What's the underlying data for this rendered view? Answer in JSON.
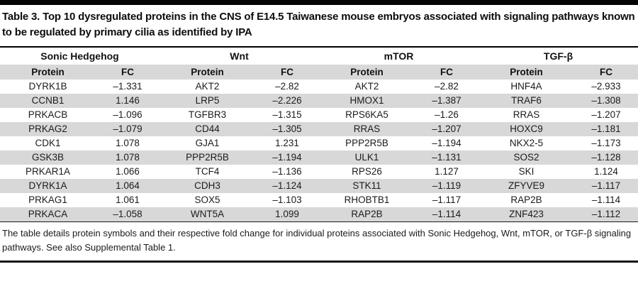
{
  "page": {
    "title": "Table 3. Top 10 dysregulated proteins in the CNS of E14.5 Taiwanese mouse embryos associated with signaling pathways known to be regulated by primary cilia as identified by IPA",
    "footnote": "The table details protein symbols and their respective fold change for individual proteins associated with Sonic Hedgehog, Wnt, mTOR, or TGF-β signaling pathways. See also Supplemental Table 1."
  },
  "table": {
    "col_headers": {
      "protein": "Protein",
      "fc": "FC"
    },
    "pathways": [
      {
        "name": "Sonic Hedgehog",
        "rows": [
          {
            "protein": "DYRK1B",
            "fc": "–1.331"
          },
          {
            "protein": "CCNB1",
            "fc": "1.146"
          },
          {
            "protein": "PRKACB",
            "fc": "–1.096"
          },
          {
            "protein": "PRKAG2",
            "fc": "–1.079"
          },
          {
            "protein": "CDK1",
            "fc": "1.078"
          },
          {
            "protein": "GSK3B",
            "fc": "1.078"
          },
          {
            "protein": "PRKAR1A",
            "fc": "1.066"
          },
          {
            "protein": "DYRK1A",
            "fc": "1.064"
          },
          {
            "protein": "PRKAG1",
            "fc": "1.061"
          },
          {
            "protein": "PRKACA",
            "fc": "–1.058"
          }
        ]
      },
      {
        "name": "Wnt",
        "rows": [
          {
            "protein": "AKT2",
            "fc": "–2.82"
          },
          {
            "protein": "LRP5",
            "fc": "–2.226"
          },
          {
            "protein": "TGFBR3",
            "fc": "–1.315"
          },
          {
            "protein": "CD44",
            "fc": "–1.305"
          },
          {
            "protein": "GJA1",
            "fc": "1.231"
          },
          {
            "protein": "PPP2R5B",
            "fc": "–1.194"
          },
          {
            "protein": "TCF4",
            "fc": "–1.136"
          },
          {
            "protein": "CDH3",
            "fc": "–1.124"
          },
          {
            "protein": "SOX5",
            "fc": "–1.103"
          },
          {
            "protein": "WNT5A",
            "fc": "1.099"
          }
        ]
      },
      {
        "name": "mTOR",
        "rows": [
          {
            "protein": "AKT2",
            "fc": "–2.82"
          },
          {
            "protein": "HMOX1",
            "fc": "–1.387"
          },
          {
            "protein": "RPS6KA5",
            "fc": "–1.26"
          },
          {
            "protein": "RRAS",
            "fc": "–1.207"
          },
          {
            "protein": "PPP2R5B",
            "fc": "–1.194"
          },
          {
            "protein": "ULK1",
            "fc": "–1.131"
          },
          {
            "protein": "RPS26",
            "fc": "1.127"
          },
          {
            "protein": "STK11",
            "fc": "–1.119"
          },
          {
            "protein": "RHOBTB1",
            "fc": "–1.117"
          },
          {
            "protein": "RAP2B",
            "fc": "–1.114"
          }
        ]
      },
      {
        "name": "TGF-β",
        "rows": [
          {
            "protein": "HNF4A",
            "fc": "–2.933"
          },
          {
            "protein": "TRAF6",
            "fc": "–1.308"
          },
          {
            "protein": "RRAS",
            "fc": "–1.207"
          },
          {
            "protein": "HOXC9",
            "fc": "–1.181"
          },
          {
            "protein": "NKX2-5",
            "fc": "–1.173"
          },
          {
            "protein": "SOS2",
            "fc": "–1.128"
          },
          {
            "protein": "SKI",
            "fc": "1.124"
          },
          {
            "protein": "ZFYVE9",
            "fc": "–1.117"
          },
          {
            "protein": "RAP2B",
            "fc": "–1.114"
          },
          {
            "protein": "ZNF423",
            "fc": "–1.112"
          }
        ]
      }
    ]
  },
  "colors": {
    "row_shade": "#d8d8d8",
    "text": "#1a1a1a",
    "rule": "#000000"
  }
}
